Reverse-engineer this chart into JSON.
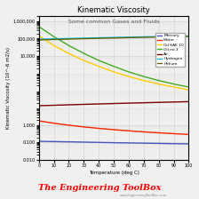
{
  "title": "Kinematic Viscosity",
  "subtitle": "Some common Gases and Fluids",
  "xlabel": "Temperature (deg C)",
  "ylabel": "Kinematic Viscosity (10^-6 m2/s)",
  "watermark": "The Engineering ToolBox",
  "watermark_url": "www.EngineeringToolBox.com",
  "temp_range": [
    0,
    10,
    20,
    30,
    40,
    50,
    60,
    70,
    80,
    90,
    100
  ],
  "series": [
    {
      "name": "Mercury",
      "color": "#4455bb",
      "values": [
        0.118,
        0.114,
        0.11,
        0.106,
        0.102,
        0.098,
        0.095,
        0.092,
        0.089,
        0.086,
        0.084
      ]
    },
    {
      "name": "Water",
      "color": "#ff2200",
      "values": [
        1.787,
        1.307,
        1.004,
        0.801,
        0.658,
        0.553,
        0.475,
        0.413,
        0.365,
        0.326,
        0.294
      ]
    },
    {
      "name": "Oil SAE 10",
      "color": "#ffcc00",
      "values": [
        150000,
        40000,
        14000,
        5500,
        2500,
        1200,
        650,
        380,
        240,
        160,
        110
      ]
    },
    {
      "name": "Oil no.3",
      "color": "#44aa22",
      "values": [
        500000,
        130000,
        40000,
        14000,
        5500,
        2500,
        1200,
        650,
        380,
        240,
        160
      ]
    },
    {
      "name": "Air",
      "color": "#770000",
      "values": [
        13.3,
        14.2,
        15.1,
        16.0,
        16.9,
        17.9,
        18.9,
        19.8,
        20.9,
        21.9,
        23.0
      ]
    },
    {
      "name": "Hydrogen",
      "color": "#00bbee",
      "values": [
        92000,
        97000,
        102000,
        107000,
        112000,
        117000,
        122000,
        127000,
        132000,
        137000,
        142000
      ]
    },
    {
      "name": "Helium",
      "color": "#666600",
      "values": [
        84000,
        89000,
        94000,
        99000,
        104000,
        109000,
        114000,
        119000,
        124000,
        129000,
        134000
      ]
    }
  ],
  "ylim_low": 0.01,
  "ylim_high": 2000000,
  "xlim": [
    0,
    100
  ],
  "xticks": [
    0,
    10,
    20,
    30,
    40,
    50,
    60,
    70,
    80,
    90,
    100
  ],
  "ytick_labels": [
    "0.010",
    "0.100",
    "1.000",
    "10,000",
    "100,000",
    "1,000,000"
  ],
  "ytick_values": [
    0.01,
    0.1,
    1.0,
    10000,
    100000,
    1000000
  ],
  "background_color": "#f0f0ee",
  "grid_color": "#cccccc",
  "title_fontsize": 6,
  "subtitle_fontsize": 4.5,
  "tick_fontsize": 3.5,
  "label_fontsize": 4,
  "legend_fontsize": 3.2,
  "watermark_fontsize": 7,
  "watermark_color": "#ff0000"
}
